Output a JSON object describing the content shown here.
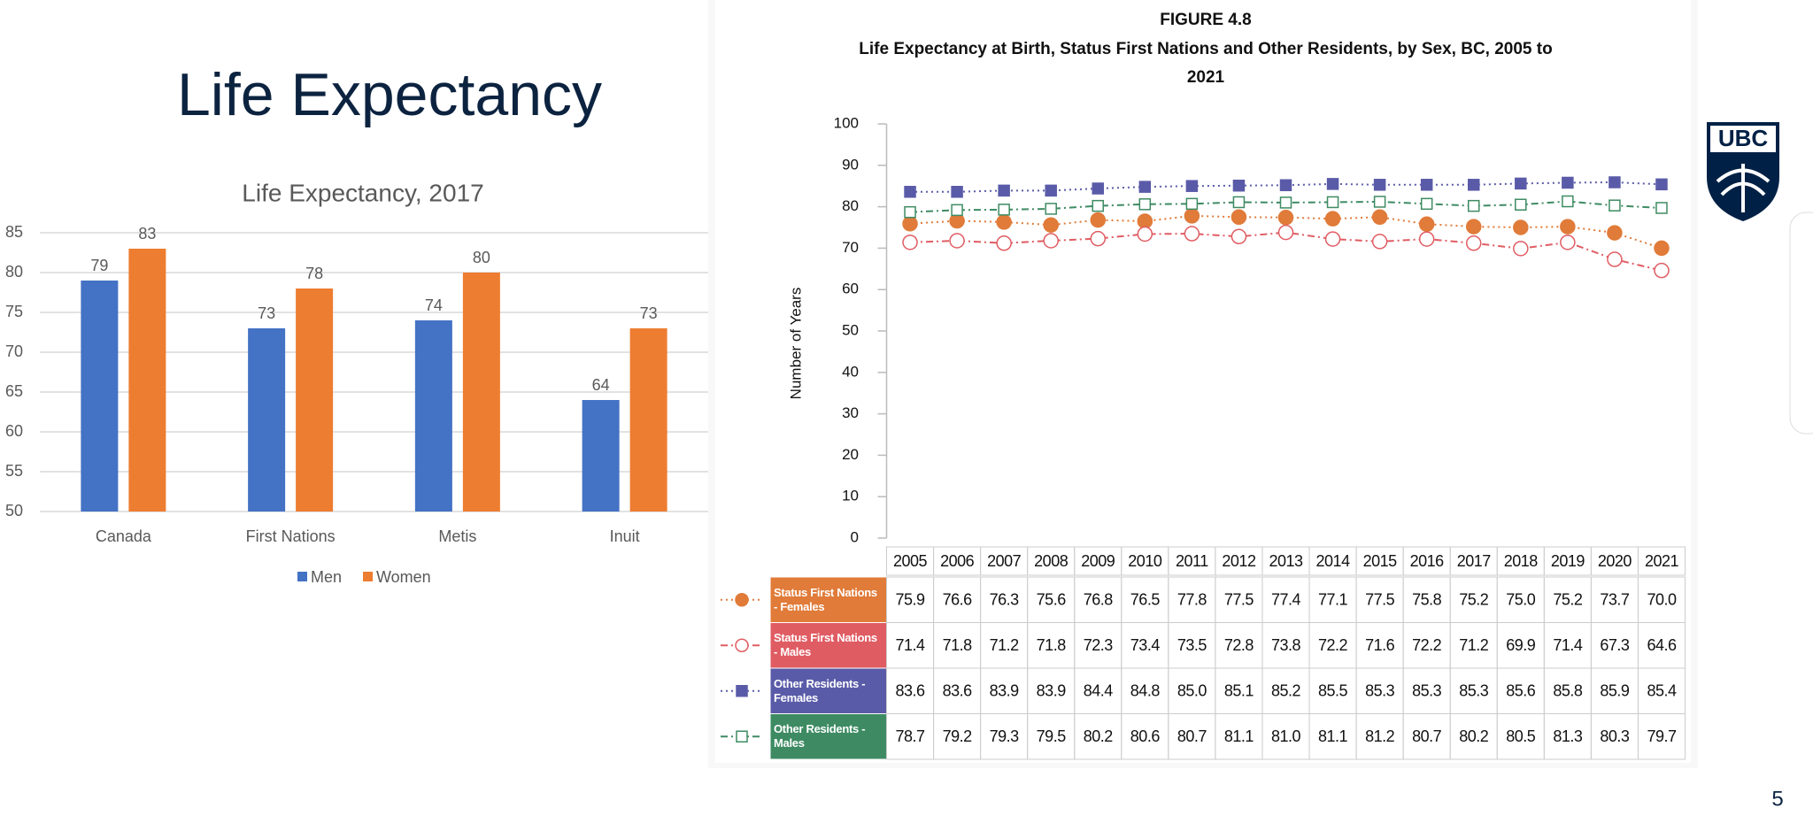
{
  "slide": {
    "title": "Life Expectancy",
    "page_number": 5,
    "logo_text": "UBC"
  },
  "chart_data": [
    {
      "type": "bar",
      "title": "Life Expectancy, 2017",
      "categories": [
        "Canada",
        "First Nations",
        "Metis",
        "Inuit"
      ],
      "series": [
        {
          "name": "Men",
          "color": "#4472c4",
          "values": [
            79,
            73,
            74,
            64
          ]
        },
        {
          "name": "Women",
          "color": "#ed7d31",
          "values": [
            83,
            78,
            80,
            73
          ]
        }
      ],
      "ylim": [
        50,
        85
      ],
      "yticks": [
        50,
        55,
        60,
        65,
        70,
        75,
        80,
        85
      ],
      "grid": true,
      "legend": "bottom",
      "data_labels": true
    },
    {
      "type": "line",
      "figure_label": "FIGURE 4.8",
      "title": "Life Expectancy at Birth, Status First Nations and Other Residents, by Sex, BC, 2005 to 2021",
      "y_label": "Number of Years",
      "categories": [
        2005,
        2006,
        2007,
        2008,
        2009,
        2010,
        2011,
        2012,
        2013,
        2014,
        2015,
        2016,
        2017,
        2018,
        2019,
        2020,
        2021
      ],
      "ylim": [
        0,
        100
      ],
      "yticks": [
        0,
        10,
        20,
        30,
        40,
        50,
        60,
        70,
        80,
        90,
        100
      ],
      "series": [
        {
          "name": "Status First Nations - Females",
          "color": "#e07b39",
          "marker": "circle",
          "marker_fill": true,
          "dash": "2 4",
          "values": [
            75.9,
            76.6,
            76.3,
            75.6,
            76.8,
            76.5,
            77.8,
            77.5,
            77.4,
            77.1,
            77.5,
            75.8,
            75.2,
            75.0,
            75.2,
            73.7,
            70.0
          ],
          "value_labels": [
            "75.9",
            "76.6",
            "76.3",
            "75.6",
            "76.8",
            "76.5",
            "77.8",
            "77.5",
            "77.4",
            "77.1",
            "77.5",
            "75.8",
            "75.2",
            "75.0",
            "75.2",
            "73.7",
            "70.0"
          ]
        },
        {
          "name": "Status First Nations - Males",
          "color": "#e05c63",
          "marker": "circle",
          "marker_fill": false,
          "dash": "8 4 2 4",
          "values": [
            71.4,
            71.8,
            71.2,
            71.8,
            72.3,
            73.4,
            73.5,
            72.8,
            73.8,
            72.2,
            71.6,
            72.2,
            71.2,
            69.9,
            71.4,
            67.3,
            64.6
          ],
          "value_labels": [
            "71.4",
            "71.8",
            "71.2",
            "71.8",
            "72.3",
            "73.4",
            "73.5",
            "72.8",
            "73.8",
            "72.2",
            "71.6",
            "72.2",
            "71.2",
            "69.9",
            "71.4",
            "67.3",
            "64.6"
          ]
        },
        {
          "name": "Other Residents - Females",
          "color": "#5a5ba8",
          "marker": "square",
          "marker_fill": true,
          "dash": "2 4",
          "values": [
            83.6,
            83.6,
            83.9,
            83.9,
            84.4,
            84.8,
            85.0,
            85.1,
            85.2,
            85.5,
            85.3,
            85.3,
            85.3,
            85.6,
            85.8,
            85.9,
            85.4
          ],
          "value_labels": [
            "83.6",
            "83.6",
            "83.9",
            "83.9",
            "84.4",
            "84.8",
            "85.0",
            "85.1",
            "85.2",
            "85.5",
            "85.3",
            "85.3",
            "85.3",
            "85.6",
            "85.8",
            "85.9",
            "85.4"
          ]
        },
        {
          "name": "Other Residents - Males",
          "color": "#3e8b63",
          "marker": "square",
          "marker_fill": false,
          "dash": "8 4 2 4",
          "values": [
            78.7,
            79.2,
            79.3,
            79.5,
            80.2,
            80.6,
            80.7,
            81.1,
            81.0,
            81.1,
            81.2,
            80.7,
            80.2,
            80.5,
            81.3,
            80.3,
            79.7
          ],
          "value_labels": [
            "78.7",
            "79.2",
            "79.3",
            "79.5",
            "80.2",
            "80.6",
            "80.7",
            "81.1",
            "81.0",
            "81.1",
            "81.2",
            "80.7",
            "80.2",
            "80.5",
            "81.3",
            "80.3",
            "79.7"
          ]
        }
      ]
    }
  ]
}
